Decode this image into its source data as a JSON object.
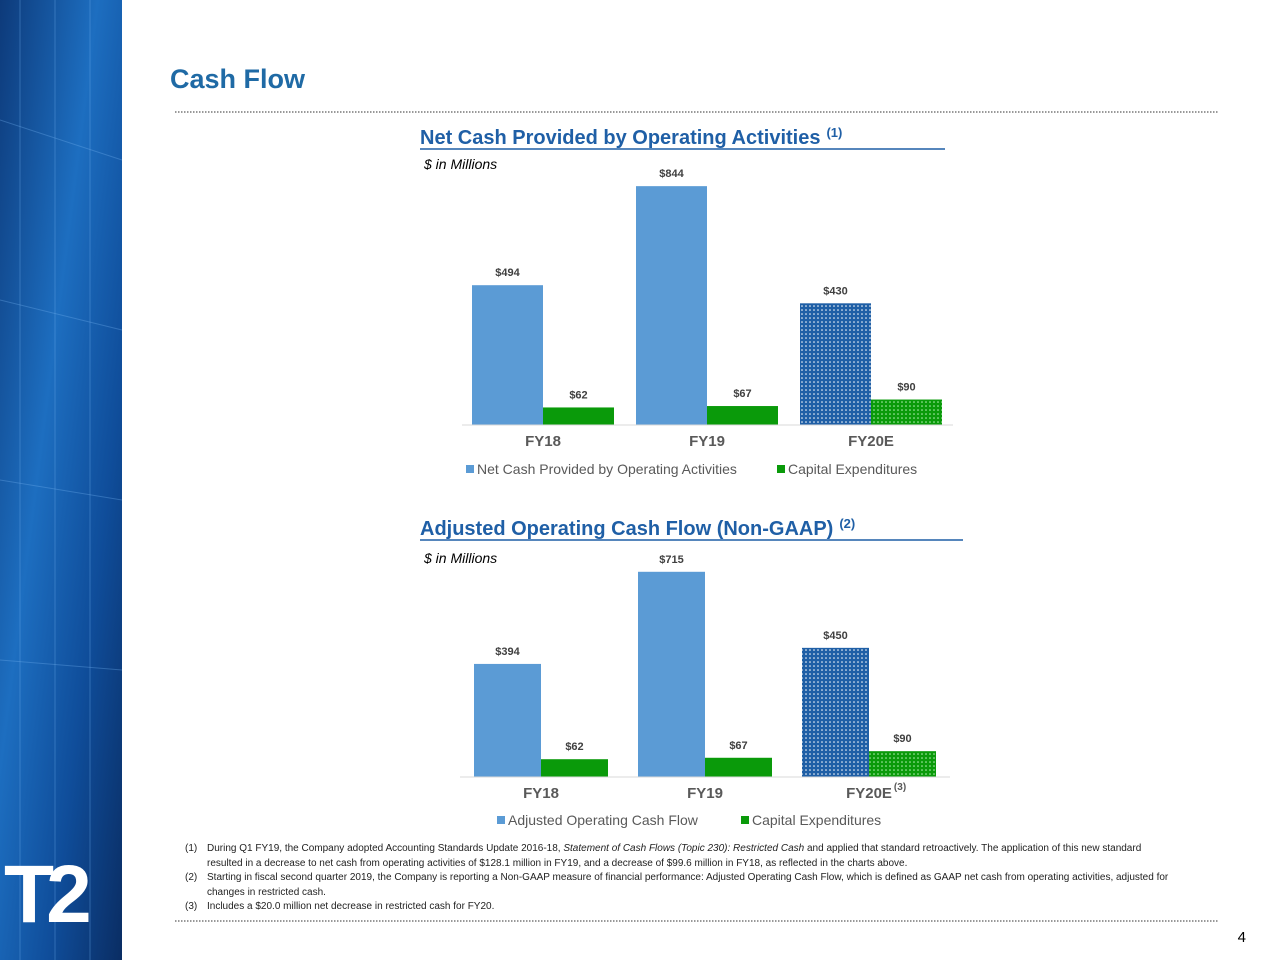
{
  "slide": {
    "title": "Cash Flow",
    "logo": "T2",
    "page_number": "4",
    "footnotes": [
      {
        "number": "(1)",
        "parts": [
          {
            "text": "During Q1 FY19, the Company adopted Accounting Standards Update 2016-18, "
          },
          {
            "text": "Statement of Cash Flows (Topic 230): Restricted Cash",
            "italic": true
          },
          {
            "text": " and applied that standard retroactively. The application of this new standard resulted in a decrease to net cash from operating activities of $128.1 million in FY19, and a decrease of $99.6 million in FY18, as reflected in the charts above."
          }
        ]
      },
      {
        "number": "(2)",
        "parts": [
          {
            "text": "Starting in fiscal second quarter 2019, the Company is reporting a Non-GAAP measure of financial performance: Adjusted Operating Cash Flow, which is defined as GAAP net cash from operating activities, adjusted for changes in restricted cash."
          }
        ]
      },
      {
        "number": "(3)",
        "parts": [
          {
            "text": "Includes a $20.0 million net decrease in restricted cash for FY20."
          }
        ]
      }
    ]
  },
  "chart_data": [
    {
      "type": "bar",
      "title": "Net Cash Provided by Operating Activities",
      "title_superscript": "(1)",
      "subtitle": "$ in Millions",
      "categories": [
        "FY18",
        "FY19",
        "FY20E"
      ],
      "category_notes": [
        null,
        null,
        null
      ],
      "patterned": [
        false,
        false,
        true
      ],
      "series": [
        {
          "name": "Net Cash Provided by Operating Activities",
          "color": "#5b9bd5",
          "values": [
            494,
            844,
            430
          ],
          "value_labels": [
            "$494",
            "$844",
            "$430"
          ]
        },
        {
          "name": "Capital Expenditures",
          "color": "#0a9a0a",
          "values": [
            62,
            67,
            90
          ],
          "value_labels": [
            "$62",
            "$67",
            "$90"
          ]
        }
      ]
    },
    {
      "type": "bar",
      "title": "Adjusted Operating Cash Flow (Non-GAAP)",
      "title_superscript": "(2)",
      "subtitle": "$ in Millions",
      "categories": [
        "FY18",
        "FY19",
        "FY20E"
      ],
      "category_notes": [
        null,
        null,
        "(3)"
      ],
      "patterned": [
        false,
        false,
        true
      ],
      "series": [
        {
          "name": "Adjusted Operating Cash Flow",
          "color": "#5b9bd5",
          "values": [
            394,
            715,
            450
          ],
          "value_labels": [
            "$394",
            "$715",
            "$450"
          ]
        },
        {
          "name": "Capital Expenditures",
          "color": "#0a9a0a",
          "values": [
            62,
            67,
            90
          ],
          "value_labels": [
            "$62",
            "$67",
            "$90"
          ]
        }
      ]
    }
  ]
}
